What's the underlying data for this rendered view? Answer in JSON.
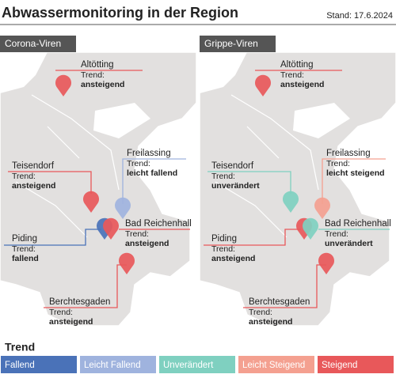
{
  "header": {
    "title": "Abwassermonitoring in der Region",
    "date": "Stand: 17.6.2024"
  },
  "panels": [
    {
      "title": "Corona-Viren",
      "locations": [
        {
          "name": "Altötting",
          "trend_label": "Trend:",
          "trend": "ansteigend",
          "color": "#e8585a"
        },
        {
          "name": "Teisendorf",
          "trend_label": "Trend:",
          "trend": "ansteigend",
          "color": "#e8585a"
        },
        {
          "name": "Freilassing",
          "trend_label": "Trend:",
          "trend": "leicht fallend",
          "color": "#9fb3de"
        },
        {
          "name": "Piding",
          "trend_label": "Trend:",
          "trend": "fallend",
          "color": "#4a72b8"
        },
        {
          "name": "Bad Reichenhall",
          "trend_label": "Trend:",
          "trend": "ansteigend",
          "color": "#e8585a"
        },
        {
          "name": "Berchtesgaden",
          "trend_label": "Trend:",
          "trend": "ansteigend",
          "color": "#e8585a"
        }
      ]
    },
    {
      "title": "Grippe-Viren",
      "locations": [
        {
          "name": "Altötting",
          "trend_label": "Trend:",
          "trend": "ansteigend",
          "color": "#e8585a"
        },
        {
          "name": "Teisendorf",
          "trend_label": "Trend:",
          "trend": "unverändert",
          "color": "#7fd0c0"
        },
        {
          "name": "Freilassing",
          "trend_label": "Trend:",
          "trend": "leicht steigend",
          "color": "#f4a090"
        },
        {
          "name": "Piding",
          "trend_label": "Trend:",
          "trend": "ansteigend",
          "color": "#e8585a"
        },
        {
          "name": "Bad Reichenhall",
          "trend_label": "Trend:",
          "trend": "unverändert",
          "color": "#7fd0c0"
        },
        {
          "name": "Berchtesgaden",
          "trend_label": "Trend:",
          "trend": "ansteigend",
          "color": "#e8585a"
        }
      ]
    }
  ],
  "legend": {
    "title": "Trend",
    "items": [
      {
        "label": "Fallend",
        "color": "#4a72b8"
      },
      {
        "label": "Leicht Fallend",
        "color": "#9fb3de"
      },
      {
        "label": "Unverändert",
        "color": "#7fd0c0"
      },
      {
        "label": "Leicht Steigend",
        "color": "#f4a090"
      },
      {
        "label": "Steigend",
        "color": "#e8585a"
      }
    ]
  }
}
